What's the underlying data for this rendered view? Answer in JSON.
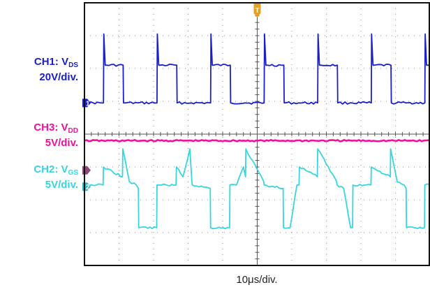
{
  "channels": {
    "ch1": {
      "name": "CH1:",
      "symbol": "V",
      "sub": "DS",
      "scale": "20V/div.",
      "color": "#1a1fc8"
    },
    "ch3": {
      "name": "CH3:",
      "symbol": "V",
      "sub": "DD",
      "scale": "5V/div.",
      "color": "#f0109a"
    },
    "ch2": {
      "name": "CH2:",
      "symbol": "V",
      "sub": "GS",
      "scale": "5V/div.",
      "color": "#35d6e0"
    }
  },
  "markers": {
    "ch1": "1",
    "ch2": "2",
    "trigger": "T"
  },
  "timebase": "10μs/div.",
  "chart_data": {
    "type": "line",
    "grid": true,
    "x_unit": "div",
    "xlim": [
      0,
      10
    ],
    "ylim": [
      -4,
      4
    ],
    "y_unit": "div",
    "period_div": 1.55,
    "series": [
      {
        "name": "CH1: VDS",
        "color": "#1a1fc8",
        "x": [
          0,
          0.55,
          0.56,
          0.6,
          0.64,
          1.12,
          1.13,
          1.55,
          2.1,
          2.11,
          2.15,
          2.19,
          2.67,
          2.68,
          3.1,
          3.65,
          3.66,
          3.7,
          3.74,
          4.22,
          4.23,
          4.65,
          5.2,
          5.21,
          5.25,
          5.29,
          5.77,
          5.78,
          6.2,
          6.75,
          6.76,
          6.8,
          6.84,
          7.32,
          7.33,
          7.75,
          8.3,
          8.31,
          8.35,
          8.39,
          8.87,
          8.88,
          9.3,
          9.85,
          9.86,
          9.9,
          9.94,
          10
        ],
        "y": [
          0.95,
          0.95,
          3.05,
          2.1,
          2.1,
          2.1,
          0.95,
          0.95,
          0.95,
          3.05,
          2.1,
          2.1,
          2.1,
          0.95,
          0.95,
          0.95,
          3.05,
          2.1,
          2.1,
          2.1,
          0.95,
          0.95,
          0.95,
          3.05,
          2.1,
          2.1,
          2.1,
          0.95,
          0.95,
          0.95,
          3.05,
          2.1,
          2.1,
          2.1,
          0.95,
          0.95,
          0.95,
          3.05,
          2.1,
          2.1,
          2.1,
          0.95,
          0.95,
          0.95,
          3.05,
          2.1,
          2.1,
          2.1
        ]
      },
      {
        "name": "CH3: VDD",
        "color": "#f0109a",
        "x": [
          0,
          10
        ],
        "y": [
          -0.2,
          -0.2
        ]
      },
      {
        "name": "CH2: VGS",
        "color": "#35d6e0",
        "x": [
          0,
          0.54,
          0.55,
          1.1,
          1.11,
          1.3,
          1.5,
          1.56,
          1.57,
          2.09,
          2.1,
          2.65,
          2.66,
          2.85,
          3.05,
          3.11,
          3.12,
          3.64,
          3.65,
          4.2,
          4.21,
          4.4,
          4.6,
          4.66,
          4.67,
          5.19,
          5.2,
          5.75,
          5.76,
          5.95,
          6.15,
          6.21,
          6.22,
          6.74,
          6.75,
          7.3,
          7.31,
          7.5,
          7.7,
          7.76,
          7.77,
          8.29,
          8.3,
          8.85,
          8.86,
          9.05,
          9.25,
          9.31,
          9.32,
          9.84,
          9.85,
          10
        ],
        "y": [
          -1.55,
          -1.55,
          -1.0,
          -1.3,
          -0.45,
          -1.45,
          -1.55,
          -1.65,
          -2.85,
          -2.85,
          -1.55,
          -1.55,
          -1.0,
          -1.3,
          -0.45,
          -1.45,
          -1.55,
          -1.65,
          -2.85,
          -2.85,
          -1.55,
          -1.55,
          -1.0,
          -1.3,
          -0.45,
          -1.45,
          -1.55,
          -1.65,
          -2.85,
          -2.85,
          -1.55,
          -1.55,
          -1.0,
          -1.3,
          -0.45,
          -1.45,
          -1.55,
          -1.65,
          -2.85,
          -2.85,
          -1.55,
          -1.55,
          -1.0,
          -1.3,
          -0.45,
          -1.45,
          -1.55,
          -1.65,
          -2.85,
          -2.85,
          -1.55,
          -1.55
        ]
      }
    ]
  }
}
